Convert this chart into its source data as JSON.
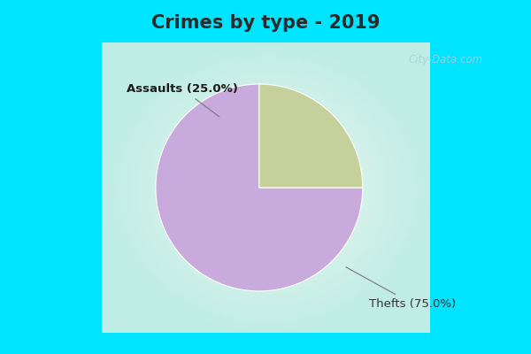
{
  "title": "Crimes by type - 2019",
  "slices": [
    75.0,
    25.0
  ],
  "labels": [
    "Thefts (75.0%)",
    "Assaults (25.0%)"
  ],
  "colors": [
    "#C8AADC",
    "#C5D09A"
  ],
  "start_angle": 90,
  "background_top_color": "#00E5FF",
  "background_main_color": "#D8EFE0",
  "title_fontsize": 15,
  "label_fontsize": 9.5,
  "watermark": "City-Data.com",
  "title_color": "#2a2a2a"
}
